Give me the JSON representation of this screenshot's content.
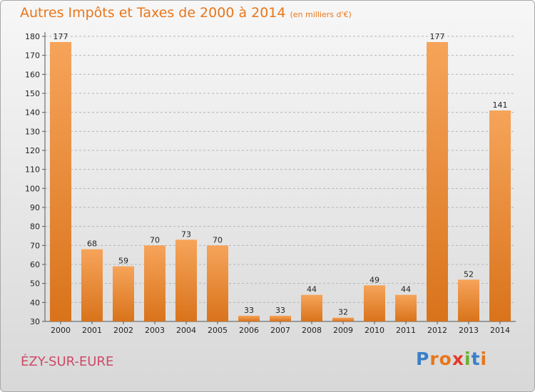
{
  "header": {
    "title": "Autres Impôts et Taxes de 2000 à 2014",
    "unit": "(en milliers d'€)"
  },
  "location": "ÉZY-SUR-EURE",
  "brand": {
    "name": "Proxiti",
    "letters": [
      {
        "char": "P",
        "color": "#3a7fc8"
      },
      {
        "char": "r",
        "color": "#e8761a"
      },
      {
        "char": "o",
        "color": "#e8761a"
      },
      {
        "char": "x",
        "color": "#e23a2a"
      },
      {
        "char": "i",
        "color": "#6ab02e"
      },
      {
        "char": "t",
        "color": "#3a7fc8"
      },
      {
        "char": "i",
        "color": "#e8761a"
      }
    ]
  },
  "colors": {
    "title": "#e8761a",
    "bar_light": "#f6a45a",
    "bar_dark": "#d9731b",
    "city": "#cc4a66"
  },
  "chart_data": {
    "type": "bar",
    "title": "Autres Impôts et Taxes de 2000 à 2014",
    "unit": "(en milliers d'€)",
    "categories": [
      "2000",
      "2001",
      "2002",
      "2003",
      "2004",
      "2005",
      "2006",
      "2007",
      "2008",
      "2009",
      "2010",
      "2011",
      "2012",
      "2013",
      "2014"
    ],
    "values": [
      177,
      68,
      59,
      70,
      73,
      70,
      33,
      33,
      44,
      32,
      49,
      44,
      177,
      52,
      141
    ],
    "ylim": [
      30,
      180
    ],
    "yticks": [
      30,
      40,
      50,
      60,
      70,
      80,
      90,
      100,
      110,
      120,
      130,
      140,
      150,
      160,
      170,
      180
    ],
    "grid": true,
    "data_labels": true
  }
}
